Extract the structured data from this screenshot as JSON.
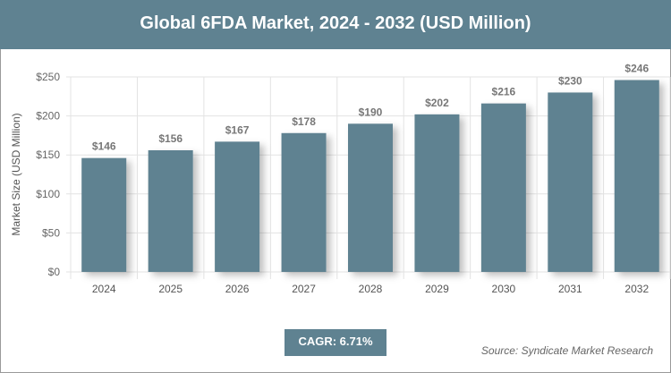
{
  "title": "Global 6FDA Market, 2024 - 2032 (USD Million)",
  "cagr": "CAGR: 6.71%",
  "source": "Source: Syndicate Market Research",
  "colors": {
    "bar": "#5f8291",
    "title_bg": "#5f8291"
  },
  "chart_data": {
    "type": "bar",
    "title": "Global 6FDA Market, 2024 - 2032 (USD Million)",
    "xlabel": "",
    "ylabel": "Market Size (USD Million)",
    "categories": [
      "2024",
      "2025",
      "2026",
      "2027",
      "2028",
      "2029",
      "2030",
      "2031",
      "2032"
    ],
    "values": [
      146,
      156,
      167,
      178,
      190,
      202,
      216,
      230,
      246
    ],
    "data_labels": [
      "$146",
      "$156",
      "$167",
      "$178",
      "$190",
      "$202",
      "$216",
      "$230",
      "$246"
    ],
    "ylim": [
      0,
      250
    ],
    "yticks": [
      "$0",
      "$50",
      "$100",
      "$150",
      "$200",
      "$250"
    ],
    "grid": true
  }
}
